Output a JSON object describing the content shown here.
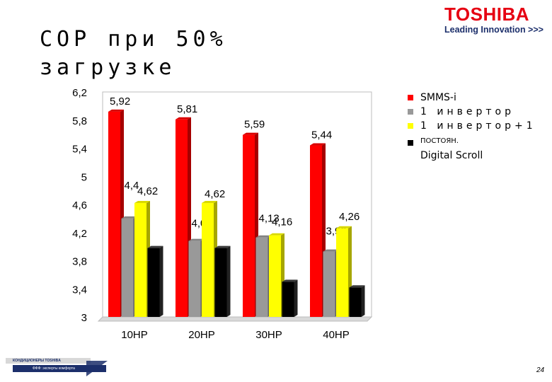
{
  "title": {
    "line1": "СОР при 50%",
    "line2": "загрузке"
  },
  "logo": {
    "brand": "TOSHIBA",
    "tagline": "Leading Innovation >>>"
  },
  "legend": [
    {
      "label": "SMMS-i",
      "color": "#ff0000"
    },
    {
      "label": "1 инвертор",
      "color": "#999999"
    },
    {
      "label": "1 инвертор+1",
      "color": "#ffff00"
    },
    {
      "label": "ПОСТОЯН.",
      "color": "#000000",
      "extra": "Digital Scroll"
    }
  ],
  "footer": {
    "logo_top": "КОНДИЦИОНЕРЫ TOSHIBA",
    "logo_bottom": "ФФФ: эксперты комфорта",
    "page_number": "24"
  },
  "chart_data": {
    "type": "bar",
    "categories": [
      "10HP",
      "20HP",
      "30HP",
      "40HP"
    ],
    "series": [
      {
        "name": "SMMS-i",
        "color": "#ff0000",
        "values": [
          5.92,
          5.81,
          5.59,
          5.44
        ],
        "labels": [
          "5,92",
          "5,81",
          "5,59",
          "5,44"
        ]
      },
      {
        "name": "1 инвертор",
        "color": "#999999",
        "values": [
          4.4,
          4.08,
          4.13,
          3.93
        ],
        "labels": [
          "4,4",
          "4,08",
          "4,13",
          "3,93"
        ]
      },
      {
        "name": "1 инвертор+1",
        "color": "#ffff00",
        "values": [
          4.62,
          4.62,
          4.16,
          4.26
        ],
        "labels": [
          "4,62",
          "4,62",
          "4,16",
          "4,26"
        ]
      },
      {
        "name": "ПОСТОЯН. Digital Scroll",
        "color": "#000000",
        "values": [
          3.98,
          3.98,
          3.5,
          3.42
        ],
        "labels": [
          "",
          "",
          "",
          ""
        ]
      }
    ],
    "yticks": [
      "6,2",
      "5,8",
      "5,4",
      "5",
      "4,6",
      "4,2",
      "3,8",
      "3,4",
      "3"
    ],
    "ylim": [
      3,
      6.2
    ],
    "grid": false,
    "legend_position": "right"
  }
}
